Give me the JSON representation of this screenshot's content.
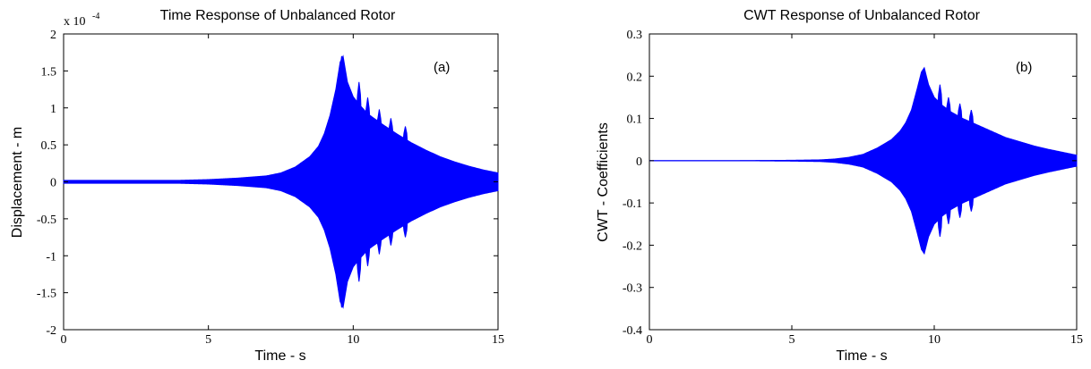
{
  "chart_data": [
    {
      "type": "area",
      "title": "Time Response of Unbalanced Rotor",
      "exponent_label": "x 10",
      "exponent_power": "-4",
      "panel_label": "(a)",
      "xlabel": "Time - s",
      "ylabel": "Displacement - m",
      "xlim": [
        0,
        15
      ],
      "ylim": [
        -2,
        2
      ],
      "xticks": [
        0,
        5,
        10,
        15
      ],
      "xtick_labels": [
        "0",
        "5",
        "10",
        "15"
      ],
      "yticks": [
        -2,
        -1.5,
        -1,
        -0.5,
        0,
        0.5,
        1,
        1.5,
        2
      ],
      "ytick_labels": [
        "-2",
        "-1.5",
        "-1",
        "-0.5",
        "0",
        "0.5",
        "1",
        "1.5",
        "2"
      ],
      "color": "#0000ff",
      "series": [
        {
          "envelope_x": [
            0,
            2,
            4,
            5,
            6,
            7,
            7.5,
            8,
            8.5,
            8.8,
            9.0,
            9.2,
            9.4,
            9.55,
            9.65,
            9.8,
            10.0,
            10.2,
            10.5,
            11,
            11.5,
            12,
            12.5,
            13,
            13.5,
            14,
            14.5,
            15
          ],
          "envelope_upper": [
            0.02,
            0.02,
            0.02,
            0.03,
            0.05,
            0.08,
            0.12,
            0.2,
            0.34,
            0.48,
            0.65,
            0.9,
            1.25,
            1.62,
            1.7,
            1.35,
            1.15,
            1.05,
            0.92,
            0.78,
            0.65,
            0.53,
            0.43,
            0.34,
            0.27,
            0.21,
            0.16,
            0.12
          ],
          "peaks_x": [
            9.6,
            10.2,
            10.5,
            10.9,
            11.3,
            11.8
          ],
          "peaks_y": [
            1.7,
            1.35,
            1.14,
            0.98,
            0.86,
            0.75
          ]
        }
      ]
    },
    {
      "type": "area",
      "title": "CWT Response of Unbalanced Rotor",
      "panel_label": "(b)",
      "xlabel": "Time - s",
      "ylabel": "CWT - Coefficients",
      "xlim": [
        0,
        15
      ],
      "ylim": [
        -0.4,
        0.3
      ],
      "xticks": [
        0,
        5,
        10,
        15
      ],
      "xtick_labels": [
        "0",
        "5",
        "10",
        "15"
      ],
      "yticks": [
        -0.4,
        -0.3,
        -0.2,
        -0.1,
        0,
        0.1,
        0.2,
        0.3
      ],
      "ytick_labels": [
        "-0.4",
        "-0.3",
        "-0.2",
        "-0.1",
        "0",
        "0.1",
        "0.2",
        "0.3"
      ],
      "color": "#0000ff",
      "series": [
        {
          "envelope_x": [
            0,
            3,
            5,
            6,
            6.5,
            7,
            7.5,
            8,
            8.5,
            8.8,
            9.0,
            9.2,
            9.4,
            9.55,
            9.65,
            9.8,
            10.0,
            10.3,
            10.6,
            11,
            11.5,
            12,
            12.5,
            13,
            13.5,
            14,
            14.5,
            15
          ],
          "envelope_upper": [
            0.0,
            0.0,
            0.001,
            0.002,
            0.004,
            0.008,
            0.015,
            0.03,
            0.05,
            0.07,
            0.09,
            0.12,
            0.17,
            0.21,
            0.22,
            0.18,
            0.15,
            0.13,
            0.115,
            0.1,
            0.085,
            0.07,
            0.055,
            0.045,
            0.035,
            0.027,
            0.02,
            0.013
          ],
          "peaks_x": [
            9.65,
            10.2,
            10.5,
            10.9,
            11.3
          ],
          "peaks_y": [
            0.22,
            0.18,
            0.15,
            0.135,
            0.12
          ]
        }
      ]
    }
  ]
}
